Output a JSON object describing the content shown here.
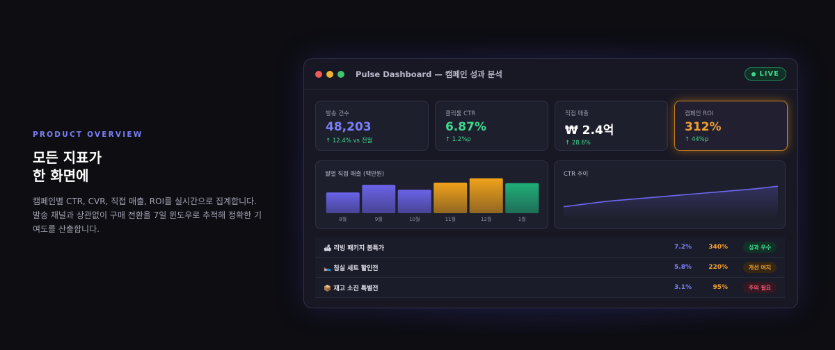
{
  "intro": {
    "eyebrow": "PRODUCT OVERVIEW",
    "headline_line1": "모든 지표가",
    "headline_line2": "한 화면에",
    "description": "캠페인별 CTR, CVR, 직접 매출, ROI를 실시간으로 집계합니다. 발송 채널과 상관없이 구매 전환을 7일 윈도우로 추적해 정확한 기여도를 산출합니다."
  },
  "window": {
    "title": "Pulse Dashboard — 캠페인 성과 분석",
    "live_label": "LIVE"
  },
  "metrics": [
    {
      "label": "발송 건수",
      "value": "48,203",
      "delta": "↑ 12.4% vs 전월",
      "color": "#7b7ff5"
    },
    {
      "label": "클릭률 CTR",
      "value": "6.87%",
      "delta": "↑ 1.2%p",
      "color": "#3fd98e"
    },
    {
      "label": "직접 매출",
      "value": "₩ 2.4억",
      "delta": "↑ 28.6%",
      "color": "#ffffff"
    },
    {
      "label": "캠페인 ROI",
      "value": "312%",
      "delta": "↑ 44%p",
      "color": "#f0a030"
    }
  ],
  "charts": {
    "bar_title": "월별 직접 매출 (백만원)",
    "line_title": "CTR 추이"
  },
  "chart_data": [
    {
      "type": "bar",
      "title": "월별 직접 매출 (백만원)",
      "categories": [
        "8월",
        "9월",
        "10월",
        "11월",
        "12월",
        "1월"
      ],
      "values": [
        38,
        52,
        43,
        56,
        64,
        55
      ],
      "ylim": [
        0,
        70
      ],
      "colors": [
        "purple",
        "purple",
        "purple",
        "orange",
        "orange",
        "green"
      ]
    },
    {
      "type": "line",
      "title": "CTR 추이",
      "values": [
        4.6,
        4.9,
        5.2,
        5.4,
        5.6,
        5.8,
        6.0,
        6.2,
        6.4,
        6.6,
        6.87
      ],
      "ylim": [
        3.5,
        7.5
      ]
    }
  ],
  "campaigns": [
    {
      "icon": "🛋",
      "name": "리빙 패키지 봄특가",
      "ctr": "7.2%",
      "roi": "340%",
      "status": "성과 우수",
      "status_kind": "good"
    },
    {
      "icon": "🛌",
      "name": "침실 세트 할인전",
      "ctr": "5.8%",
      "roi": "220%",
      "status": "개선 여지",
      "status_kind": "mid"
    },
    {
      "icon": "📦",
      "name": "재고 소진 특별전",
      "ctr": "3.1%",
      "roi": "95%",
      "status": "주의 필요",
      "status_kind": "bad"
    }
  ],
  "palette": {
    "purple": "#6a63e8",
    "orange": "#f0a21a",
    "green": "#1fae78",
    "line": "#6e68ef"
  }
}
